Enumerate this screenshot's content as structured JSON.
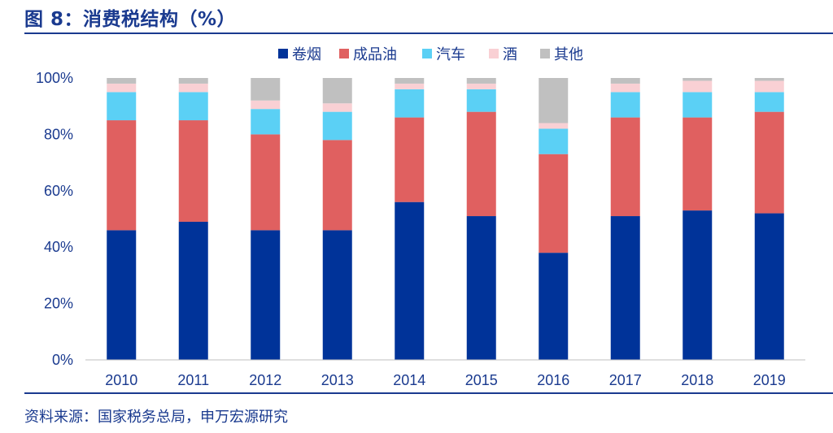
{
  "header": {
    "title": "图 8：消费税结构（%）"
  },
  "footer": {
    "source": "资料来源：国家税务总局，申万宏源研究"
  },
  "chart_data": {
    "type": "bar",
    "stacked": true,
    "categories": [
      "2010",
      "2011",
      "2012",
      "2013",
      "2014",
      "2015",
      "2016",
      "2017",
      "2018",
      "2019"
    ],
    "series": [
      {
        "name": "卷烟",
        "color": "#003399",
        "values": [
          46,
          49,
          46,
          46,
          56,
          51,
          38,
          51,
          53,
          52
        ]
      },
      {
        "name": "成品油",
        "color": "#e06060",
        "values": [
          39,
          36,
          34,
          32,
          30,
          37,
          35,
          35,
          33,
          36
        ]
      },
      {
        "name": "汽车",
        "color": "#5bd0f5",
        "values": [
          10,
          10,
          9,
          10,
          10,
          8,
          9,
          9,
          9,
          7
        ]
      },
      {
        "name": "酒",
        "color": "#f9d0d4",
        "values": [
          3,
          3,
          3,
          3,
          2,
          2,
          2,
          3,
          4,
          4
        ]
      },
      {
        "name": "其他",
        "color": "#c0c0c0",
        "values": [
          2,
          2,
          8,
          9,
          2,
          2,
          16,
          2,
          1,
          1
        ]
      }
    ],
    "ylim": [
      0,
      100
    ],
    "yticks": [
      "0%",
      "20%",
      "40%",
      "60%",
      "80%",
      "100%"
    ],
    "legend_position": "top-center",
    "grid": false
  }
}
